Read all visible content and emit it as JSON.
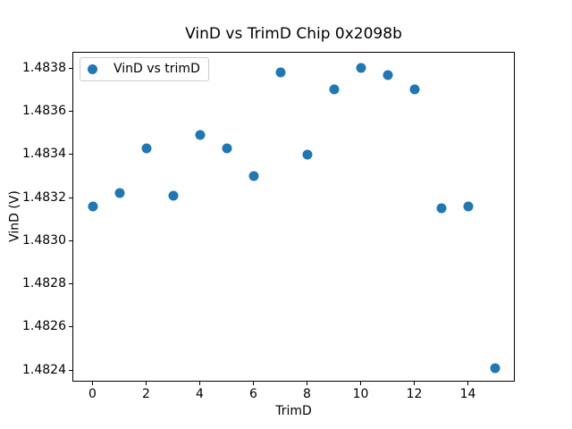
{
  "figure": {
    "background_color": "#ffffff",
    "text_color": "#000000"
  },
  "chart_data": {
    "type": "scatter",
    "title": "VinD vs TrimD Chip 0x2098b",
    "xlabel": "TrimD",
    "ylabel": "VinD (V)",
    "legend": [
      "VinD vs trimD"
    ],
    "legend_position": "upper left",
    "marker_color": "#1f77b4",
    "grid": false,
    "x": [
      0,
      1,
      2,
      3,
      4,
      5,
      6,
      7,
      8,
      9,
      10,
      11,
      12,
      13,
      14,
      15
    ],
    "y": [
      1.48316,
      1.48322,
      1.48343,
      1.48321,
      1.48349,
      1.48343,
      1.4833,
      1.48378,
      1.4834,
      1.4837,
      1.4838,
      1.48377,
      1.4837,
      1.48315,
      1.48316,
      1.48241
    ],
    "xlim": [
      -0.75,
      15.75
    ],
    "ylim": [
      1.482347,
      1.483876
    ],
    "xticks": [
      0,
      2,
      4,
      6,
      8,
      10,
      12,
      14
    ],
    "yticks": [
      1.4824,
      1.4826,
      1.4828,
      1.483,
      1.4832,
      1.4834,
      1.4836,
      1.4838
    ]
  }
}
